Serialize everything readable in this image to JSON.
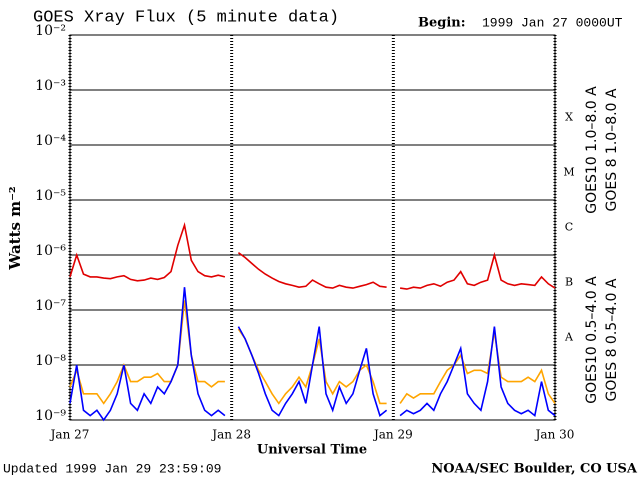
{
  "chart_data": {
    "type": "line",
    "title": "GOES Xray Flux (5 minute data)",
    "begin_label": "Begin:",
    "begin_value": "1999 Jan 27 0000UT",
    "updated": "Updated 1999 Jan 29 23:59:09",
    "source": "NOAA/SEC Boulder, CO USA",
    "x_label": "Universal Time",
    "y_label": "Watts m⁻²",
    "log_y": true,
    "grid": true,
    "xlim": [
      0,
      72
    ],
    "xticks": [
      {
        "value": 0,
        "label": "Jan 27"
      },
      {
        "value": 24,
        "label": "Jan 28"
      },
      {
        "value": 48,
        "label": "Jan 29"
      },
      {
        "value": 72,
        "label": "Jan 30"
      }
    ],
    "ylim": [
      1e-09,
      0.01
    ],
    "yticks": [
      {
        "value": 1e-09,
        "label": "10⁻⁹"
      },
      {
        "value": 1e-08,
        "label": "10⁻⁸"
      },
      {
        "value": 1e-07,
        "label": "10⁻⁷"
      },
      {
        "value": 1e-06,
        "label": "10⁻⁶"
      },
      {
        "value": 1e-05,
        "label": "10⁻⁵"
      },
      {
        "value": 0.0001,
        "label": "10⁻⁴"
      },
      {
        "value": 0.001,
        "label": "10⁻³"
      },
      {
        "value": 0.01,
        "label": "10⁻²"
      }
    ],
    "flare_classes": [
      "A",
      "B",
      "C",
      "M",
      "X"
    ],
    "x": [
      0,
      1,
      2,
      3,
      4,
      5,
      6,
      7,
      8,
      9,
      10,
      11,
      12,
      13,
      14,
      15,
      16,
      17,
      18,
      19,
      20,
      21,
      22,
      23,
      24,
      25,
      26,
      27,
      28,
      29,
      30,
      31,
      32,
      33,
      34,
      35,
      36,
      37,
      38,
      39,
      40,
      41,
      42,
      43,
      44,
      45,
      46,
      47,
      48,
      49,
      50,
      51,
      52,
      53,
      54,
      55,
      56,
      57,
      58,
      59,
      60,
      61,
      62,
      63,
      64,
      65,
      66,
      67,
      68,
      69,
      70,
      71,
      72
    ],
    "series": [
      {
        "name": "GOES10 1.0–8.0 A",
        "color": "#8000c0",
        "values": [
          null,
          null,
          null,
          null,
          null,
          null,
          null,
          null,
          null,
          null,
          null,
          null,
          null,
          null,
          null,
          null,
          null,
          null,
          null,
          null,
          null,
          null,
          null,
          null,
          null,
          null,
          null,
          null,
          null,
          null,
          null,
          null,
          null,
          null,
          null,
          null,
          null,
          null,
          null,
          null,
          null,
          null,
          null,
          null,
          null,
          null,
          null,
          null,
          null,
          null,
          null,
          null,
          null,
          null,
          null,
          null,
          null,
          null,
          null,
          null,
          null,
          null,
          null,
          null,
          null,
          null,
          null,
          null,
          null,
          null,
          null,
          null,
          null
        ]
      },
      {
        "name": "GOES10 0.5–4.0 A",
        "color": "#ffa500",
        "values": [
          4e-09,
          8e-09,
          3e-09,
          3e-09,
          3e-09,
          2e-09,
          3e-09,
          5e-09,
          1e-08,
          5e-09,
          5e-09,
          6e-09,
          6e-09,
          7e-09,
          5e-09,
          5e-09,
          1e-08,
          1.5e-07,
          1.5e-08,
          5e-09,
          5e-09,
          4e-09,
          5e-09,
          5e-09,
          null,
          4.5e-08,
          3e-08,
          1.5e-08,
          8e-09,
          5e-09,
          3e-09,
          2e-09,
          3e-09,
          4e-09,
          6e-09,
          4e-09,
          1e-08,
          3e-08,
          5e-09,
          3e-09,
          5e-09,
          4e-09,
          5e-09,
          8e-09,
          1e-08,
          5e-09,
          2e-09,
          2e-09,
          null,
          2e-09,
          3e-09,
          2.5e-09,
          3e-09,
          3e-09,
          3e-09,
          5e-09,
          8e-09,
          1e-08,
          1.5e-08,
          7e-09,
          8e-09,
          8e-09,
          7e-09,
          4e-08,
          6e-09,
          5e-09,
          5e-09,
          5e-09,
          6e-09,
          5e-09,
          8e-09,
          3e-09,
          2e-09
        ]
      },
      {
        "name": "GOES 8 0.5–4.0 A",
        "color": "#0000ff",
        "values": [
          2e-09,
          1e-08,
          1.5e-09,
          1.2e-09,
          1.5e-09,
          1e-09,
          1.5e-09,
          3e-09,
          1e-08,
          2e-09,
          1.5e-09,
          3e-09,
          2e-09,
          4e-09,
          3e-09,
          5e-09,
          1e-08,
          2.6e-07,
          1.5e-08,
          3e-09,
          1.5e-09,
          1.2e-09,
          1.5e-09,
          1.2e-09,
          null,
          5e-08,
          3e-08,
          1.5e-08,
          7e-09,
          3e-09,
          1.5e-09,
          1.2e-09,
          2e-09,
          3e-09,
          5e-09,
          2e-09,
          1e-08,
          5e-08,
          3e-09,
          1.5e-09,
          4e-09,
          2e-09,
          3e-09,
          8e-09,
          2e-08,
          3e-09,
          1.2e-09,
          1.5e-09,
          null,
          1.2e-09,
          1.5e-09,
          1.3e-09,
          1.5e-09,
          2e-09,
          1.5e-09,
          3e-09,
          5e-09,
          1e-08,
          2e-08,
          3e-09,
          2e-09,
          1.5e-09,
          5e-09,
          5e-08,
          4e-09,
          2e-09,
          1.5e-09,
          1.3e-09,
          1.5e-09,
          1.2e-09,
          5e-09,
          1.5e-09,
          1.2e-09
        ]
      },
      {
        "name": "GOES 8 1.0–8.0 A",
        "color": "#e00000",
        "values": [
          4e-07,
          1e-06,
          4.5e-07,
          4e-07,
          4e-07,
          3.8e-07,
          3.7e-07,
          4e-07,
          4.2e-07,
          3.6e-07,
          3.4e-07,
          3.5e-07,
          3.8e-07,
          3.6e-07,
          3.9e-07,
          5e-07,
          1.5e-06,
          3.5e-06,
          8e-07,
          5e-07,
          4.2e-07,
          4e-07,
          4.3e-07,
          4e-07,
          null,
          1.1e-06,
          9e-07,
          7e-07,
          5.5e-07,
          4.5e-07,
          3.8e-07,
          3.3e-07,
          3e-07,
          2.8e-07,
          2.6e-07,
          2.7e-07,
          3.5e-07,
          3e-07,
          2.6e-07,
          2.5e-07,
          2.8e-07,
          2.6e-07,
          2.5e-07,
          2.7e-07,
          2.9e-07,
          3.2e-07,
          2.7e-07,
          2.6e-07,
          null,
          2.5e-07,
          2.4e-07,
          2.6e-07,
          2.5e-07,
          2.8e-07,
          3e-07,
          2.7e-07,
          3.2e-07,
          3.5e-07,
          5e-07,
          3e-07,
          2.8e-07,
          3.2e-07,
          3.5e-07,
          1e-06,
          3.5e-07,
          3e-07,
          2.8e-07,
          3e-07,
          2.9e-07,
          2.8e-07,
          4e-07,
          3e-07,
          2.5e-07
        ]
      }
    ]
  }
}
